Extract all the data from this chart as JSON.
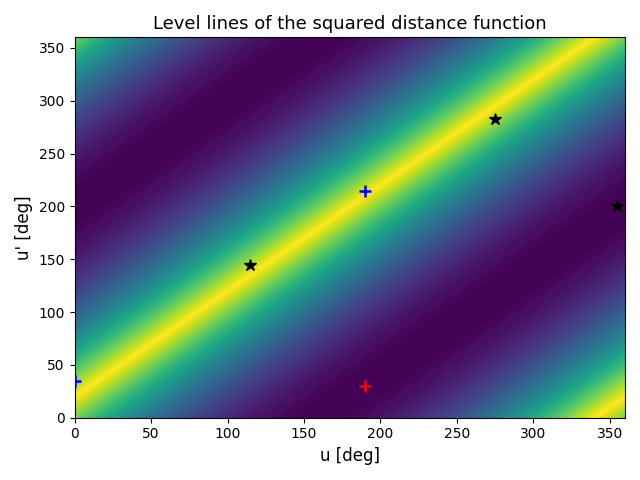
{
  "title": "Level lines of the squared distance function",
  "xlabel": "u [deg]",
  "ylabel": "u' [deg]",
  "xlim": [
    0,
    360
  ],
  "ylim": [
    0,
    360
  ],
  "xticks": [
    0,
    50,
    100,
    150,
    200,
    250,
    300,
    350
  ],
  "yticks": [
    0,
    50,
    100,
    150,
    200,
    250,
    300,
    350
  ],
  "ref_point_u": 190,
  "ref_point_uprime": 30,
  "blue_plus_u": 0,
  "blue_plus_uprime": 35,
  "blue_plus2_u": 190,
  "blue_plus2_uprime": 215,
  "star_points": [
    [
      115,
      145
    ],
    [
      275,
      283
    ],
    [
      355,
      200
    ]
  ],
  "n_levels": 80,
  "colormap": "viridis",
  "figsize": [
    6.4,
    4.8
  ],
  "dpi": 100
}
